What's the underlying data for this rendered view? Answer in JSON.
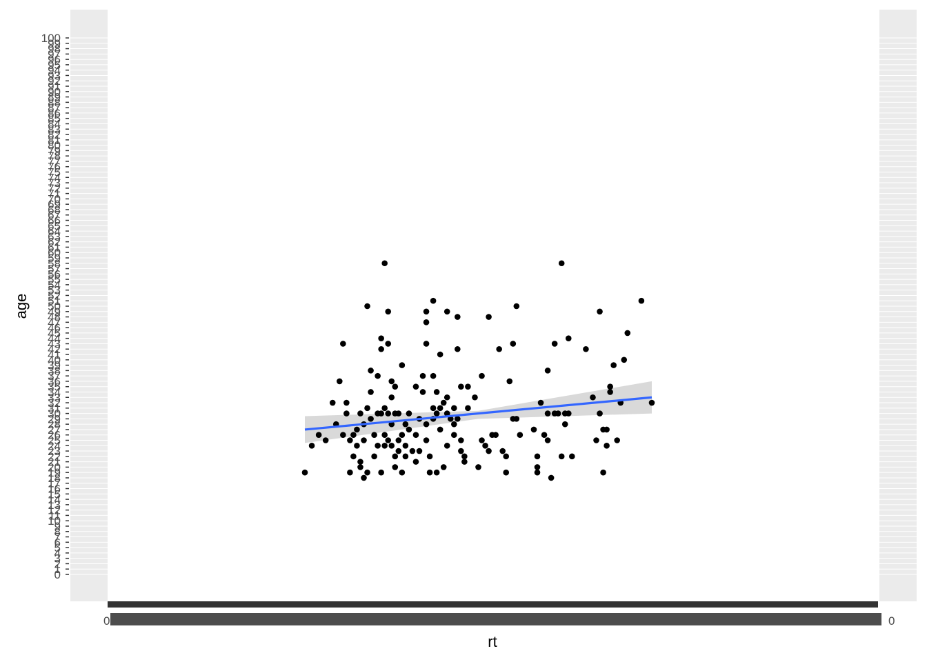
{
  "chart_data": {
    "type": "scatter",
    "title": "",
    "xlabel": "rt",
    "ylabel": "age",
    "ylim": [
      0,
      100
    ],
    "x_tick_first": "0",
    "x_tick_last": "0",
    "y_ticks": [
      0,
      1,
      2,
      3,
      4,
      5,
      6,
      7,
      8,
      9,
      10,
      11,
      12,
      13,
      14,
      15,
      16,
      17,
      18,
      19,
      20,
      21,
      22,
      23,
      24,
      25,
      26,
      27,
      28,
      29,
      30,
      31,
      32,
      33,
      34,
      35,
      36,
      37,
      38,
      39,
      40,
      41,
      42,
      43,
      44,
      45,
      46,
      47,
      48,
      49,
      50,
      51,
      52,
      53,
      54,
      55,
      56,
      57,
      58,
      59,
      60,
      61,
      62,
      63,
      64,
      65,
      66,
      67,
      68,
      69,
      70,
      71,
      72,
      73,
      74,
      75,
      76,
      77,
      78,
      79,
      80,
      81,
      82,
      83,
      84,
      85,
      86,
      87,
      88,
      89,
      90,
      91,
      92,
      93,
      94,
      95,
      96,
      97,
      98,
      99,
      100
    ],
    "grid": true,
    "legend": "none",
    "point_color": "#000000",
    "fit_line_color": "#3366ff",
    "ribbon_color": "#bfbfbf",
    "panel_color": "#ebebeb",
    "fit_line": {
      "x": [
        0.0,
        1.0
      ],
      "y": [
        27.0,
        33.0
      ]
    },
    "fit_ribbon": {
      "x": [
        0.0,
        0.5,
        1.0
      ],
      "upper": [
        29.5,
        30.5,
        36.0
      ],
      "lower": [
        24.5,
        29.0,
        30.0
      ]
    },
    "points": [
      {
        "x": 0.0,
        "y": 19
      },
      {
        "x": 0.02,
        "y": 24
      },
      {
        "x": 0.04,
        "y": 26
      },
      {
        "x": 0.06,
        "y": 25
      },
      {
        "x": 0.08,
        "y": 32
      },
      {
        "x": 0.09,
        "y": 28
      },
      {
        "x": 0.1,
        "y": 36
      },
      {
        "x": 0.11,
        "y": 43
      },
      {
        "x": 0.11,
        "y": 26
      },
      {
        "x": 0.12,
        "y": 30
      },
      {
        "x": 0.12,
        "y": 32
      },
      {
        "x": 0.13,
        "y": 25
      },
      {
        "x": 0.13,
        "y": 19
      },
      {
        "x": 0.14,
        "y": 22
      },
      {
        "x": 0.14,
        "y": 26
      },
      {
        "x": 0.15,
        "y": 27
      },
      {
        "x": 0.15,
        "y": 24
      },
      {
        "x": 0.16,
        "y": 20
      },
      {
        "x": 0.16,
        "y": 30
      },
      {
        "x": 0.16,
        "y": 21
      },
      {
        "x": 0.17,
        "y": 18
      },
      {
        "x": 0.17,
        "y": 25
      },
      {
        "x": 0.17,
        "y": 28
      },
      {
        "x": 0.18,
        "y": 31
      },
      {
        "x": 0.18,
        "y": 19
      },
      {
        "x": 0.18,
        "y": 50
      },
      {
        "x": 0.19,
        "y": 38
      },
      {
        "x": 0.19,
        "y": 34
      },
      {
        "x": 0.19,
        "y": 29
      },
      {
        "x": 0.2,
        "y": 22
      },
      {
        "x": 0.2,
        "y": 26
      },
      {
        "x": 0.21,
        "y": 30
      },
      {
        "x": 0.21,
        "y": 24
      },
      {
        "x": 0.21,
        "y": 37
      },
      {
        "x": 0.22,
        "y": 44
      },
      {
        "x": 0.22,
        "y": 42
      },
      {
        "x": 0.22,
        "y": 30
      },
      {
        "x": 0.22,
        "y": 19
      },
      {
        "x": 0.23,
        "y": 58
      },
      {
        "x": 0.23,
        "y": 24
      },
      {
        "x": 0.23,
        "y": 31
      },
      {
        "x": 0.23,
        "y": 26
      },
      {
        "x": 0.24,
        "y": 49
      },
      {
        "x": 0.24,
        "y": 43
      },
      {
        "x": 0.24,
        "y": 25
      },
      {
        "x": 0.24,
        "y": 30
      },
      {
        "x": 0.25,
        "y": 36
      },
      {
        "x": 0.25,
        "y": 33
      },
      {
        "x": 0.25,
        "y": 24
      },
      {
        "x": 0.25,
        "y": 28
      },
      {
        "x": 0.26,
        "y": 35
      },
      {
        "x": 0.26,
        "y": 30
      },
      {
        "x": 0.26,
        "y": 22
      },
      {
        "x": 0.26,
        "y": 20
      },
      {
        "x": 0.27,
        "y": 25
      },
      {
        "x": 0.27,
        "y": 23
      },
      {
        "x": 0.27,
        "y": 30
      },
      {
        "x": 0.28,
        "y": 39
      },
      {
        "x": 0.28,
        "y": 26
      },
      {
        "x": 0.28,
        "y": 19
      },
      {
        "x": 0.29,
        "y": 28
      },
      {
        "x": 0.29,
        "y": 24
      },
      {
        "x": 0.29,
        "y": 22
      },
      {
        "x": 0.3,
        "y": 30
      },
      {
        "x": 0.3,
        "y": 27
      },
      {
        "x": 0.31,
        "y": 23
      },
      {
        "x": 0.32,
        "y": 35
      },
      {
        "x": 0.32,
        "y": 21
      },
      {
        "x": 0.32,
        "y": 26
      },
      {
        "x": 0.33,
        "y": 29
      },
      {
        "x": 0.33,
        "y": 23
      },
      {
        "x": 0.34,
        "y": 37
      },
      {
        "x": 0.34,
        "y": 34
      },
      {
        "x": 0.35,
        "y": 49
      },
      {
        "x": 0.35,
        "y": 47
      },
      {
        "x": 0.35,
        "y": 43
      },
      {
        "x": 0.35,
        "y": 28
      },
      {
        "x": 0.35,
        "y": 25
      },
      {
        "x": 0.36,
        "y": 19
      },
      {
        "x": 0.36,
        "y": 22
      },
      {
        "x": 0.37,
        "y": 51
      },
      {
        "x": 0.37,
        "y": 37
      },
      {
        "x": 0.37,
        "y": 29
      },
      {
        "x": 0.37,
        "y": 31
      },
      {
        "x": 0.38,
        "y": 19
      },
      {
        "x": 0.38,
        "y": 30
      },
      {
        "x": 0.38,
        "y": 34
      },
      {
        "x": 0.39,
        "y": 41
      },
      {
        "x": 0.39,
        "y": 27
      },
      {
        "x": 0.39,
        "y": 31
      },
      {
        "x": 0.4,
        "y": 32
      },
      {
        "x": 0.4,
        "y": 20
      },
      {
        "x": 0.41,
        "y": 33
      },
      {
        "x": 0.41,
        "y": 30
      },
      {
        "x": 0.41,
        "y": 49
      },
      {
        "x": 0.41,
        "y": 24
      },
      {
        "x": 0.42,
        "y": 29
      },
      {
        "x": 0.43,
        "y": 28
      },
      {
        "x": 0.43,
        "y": 31
      },
      {
        "x": 0.43,
        "y": 26
      },
      {
        "x": 0.44,
        "y": 48
      },
      {
        "x": 0.44,
        "y": 42
      },
      {
        "x": 0.44,
        "y": 29
      },
      {
        "x": 0.45,
        "y": 35
      },
      {
        "x": 0.45,
        "y": 25
      },
      {
        "x": 0.45,
        "y": 23
      },
      {
        "x": 0.46,
        "y": 22
      },
      {
        "x": 0.46,
        "y": 21
      },
      {
        "x": 0.47,
        "y": 31
      },
      {
        "x": 0.47,
        "y": 35
      },
      {
        "x": 0.49,
        "y": 33
      },
      {
        "x": 0.5,
        "y": 20
      },
      {
        "x": 0.51,
        "y": 37
      },
      {
        "x": 0.51,
        "y": 25
      },
      {
        "x": 0.52,
        "y": 24
      },
      {
        "x": 0.53,
        "y": 48
      },
      {
        "x": 0.53,
        "y": 23
      },
      {
        "x": 0.54,
        "y": 26
      },
      {
        "x": 0.55,
        "y": 26
      },
      {
        "x": 0.56,
        "y": 42
      },
      {
        "x": 0.57,
        "y": 23
      },
      {
        "x": 0.58,
        "y": 22
      },
      {
        "x": 0.58,
        "y": 19
      },
      {
        "x": 0.59,
        "y": 36
      },
      {
        "x": 0.6,
        "y": 29
      },
      {
        "x": 0.6,
        "y": 43
      },
      {
        "x": 0.61,
        "y": 50
      },
      {
        "x": 0.61,
        "y": 29
      },
      {
        "x": 0.62,
        "y": 26
      },
      {
        "x": 0.66,
        "y": 27
      },
      {
        "x": 0.67,
        "y": 22
      },
      {
        "x": 0.67,
        "y": 19
      },
      {
        "x": 0.67,
        "y": 20
      },
      {
        "x": 0.68,
        "y": 32
      },
      {
        "x": 0.69,
        "y": 26
      },
      {
        "x": 0.7,
        "y": 38
      },
      {
        "x": 0.7,
        "y": 30
      },
      {
        "x": 0.7,
        "y": 25
      },
      {
        "x": 0.71,
        "y": 18
      },
      {
        "x": 0.72,
        "y": 43
      },
      {
        "x": 0.72,
        "y": 30
      },
      {
        "x": 0.73,
        "y": 30
      },
      {
        "x": 0.74,
        "y": 22
      },
      {
        "x": 0.74,
        "y": 58
      },
      {
        "x": 0.75,
        "y": 28
      },
      {
        "x": 0.75,
        "y": 30
      },
      {
        "x": 0.76,
        "y": 44
      },
      {
        "x": 0.76,
        "y": 30
      },
      {
        "x": 0.77,
        "y": 22
      },
      {
        "x": 0.81,
        "y": 42
      },
      {
        "x": 0.83,
        "y": 33
      },
      {
        "x": 0.84,
        "y": 25
      },
      {
        "x": 0.85,
        "y": 30
      },
      {
        "x": 0.85,
        "y": 49
      },
      {
        "x": 0.86,
        "y": 27
      },
      {
        "x": 0.86,
        "y": 19
      },
      {
        "x": 0.87,
        "y": 27
      },
      {
        "x": 0.87,
        "y": 24
      },
      {
        "x": 0.88,
        "y": 34
      },
      {
        "x": 0.88,
        "y": 35
      },
      {
        "x": 0.89,
        "y": 39
      },
      {
        "x": 0.9,
        "y": 25
      },
      {
        "x": 0.91,
        "y": 32
      },
      {
        "x": 0.92,
        "y": 40
      },
      {
        "x": 0.93,
        "y": 45
      },
      {
        "x": 0.97,
        "y": 51
      },
      {
        "x": 1.0,
        "y": 32
      }
    ]
  }
}
